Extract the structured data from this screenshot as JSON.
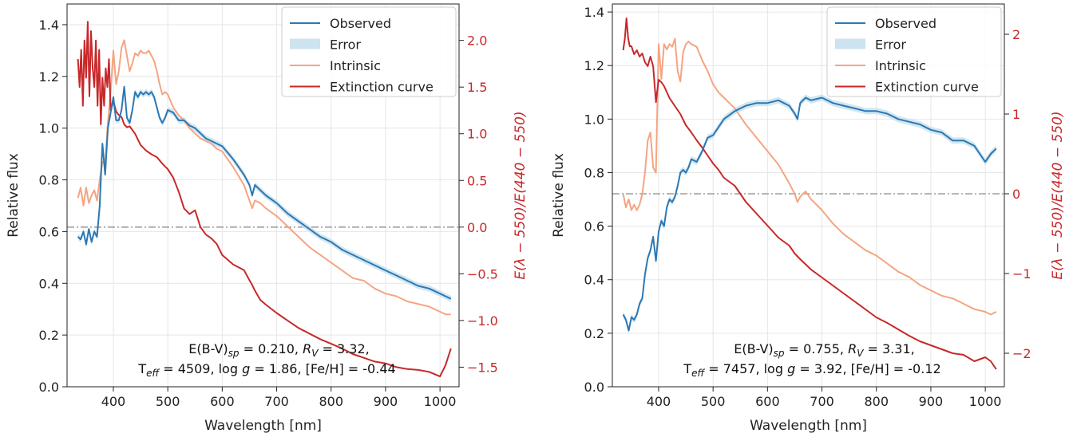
{
  "chart_data": [
    {
      "type": "line",
      "title": "",
      "xlabel": "Wavelength [nm]",
      "ylabel": "Relative flux",
      "ylabel_right": "E(λ − 550)/E(440 − 550)",
      "xlim": [
        315,
        1035
      ],
      "ylim": [
        0.0,
        1.48
      ],
      "ylim_right": [
        -1.71,
        2.39
      ],
      "xticks": [
        400,
        500,
        600,
        700,
        800,
        900,
        1000
      ],
      "yticks": [
        0.0,
        0.2,
        0.4,
        0.6,
        0.8,
        1.0,
        1.2,
        1.4
      ],
      "yticks_right": [
        -1.5,
        -1.0,
        -0.5,
        0.0,
        0.5,
        1.0,
        1.5,
        2.0
      ],
      "grid": true,
      "legend_position": "top-right",
      "legend": [
        "Observed",
        "Error",
        "Intrinsic",
        "Extinction curve"
      ],
      "colors": {
        "observed": "#2b78b4",
        "error": "#cde3ef",
        "intrinsic": "#f4a582",
        "extinction": "#c8282a",
        "zero_line": "#8c8c8c"
      },
      "annotation": {
        "line1": {
          "a": "E(B-V)",
          "sub": "sp",
          "b": " = 0.210, ",
          "c": "R",
          "csub": "V",
          "d": " = 3.32,"
        },
        "line2": {
          "a": "T",
          "sub": "eff",
          "b": " = 4509, log ",
          "c": "g",
          "d": " = 1.86, [Fe/H] = -0.44"
        }
      },
      "zero_line_right": 0,
      "series": [
        {
          "name": "Observed",
          "axis": "left",
          "x": [
            335,
            340,
            345,
            350,
            355,
            360,
            365,
            370,
            375,
            380,
            385,
            390,
            395,
            400,
            405,
            410,
            415,
            420,
            425,
            430,
            435,
            440,
            445,
            450,
            455,
            460,
            465,
            470,
            475,
            480,
            485,
            490,
            495,
            500,
            510,
            520,
            530,
            540,
            550,
            560,
            570,
            580,
            590,
            600,
            620,
            640,
            650,
            655,
            660,
            670,
            680,
            700,
            720,
            740,
            760,
            780,
            800,
            820,
            840,
            860,
            880,
            900,
            920,
            940,
            960,
            980,
            1000,
            1010,
            1020
          ],
          "y": [
            0.58,
            0.57,
            0.6,
            0.55,
            0.61,
            0.56,
            0.6,
            0.58,
            0.7,
            0.94,
            0.82,
            1.0,
            1.06,
            1.12,
            1.03,
            1.03,
            1.07,
            1.16,
            1.04,
            1.02,
            1.07,
            1.14,
            1.12,
            1.14,
            1.13,
            1.14,
            1.13,
            1.14,
            1.12,
            1.08,
            1.04,
            1.02,
            1.04,
            1.07,
            1.06,
            1.03,
            1.03,
            1.01,
            1.0,
            0.98,
            0.96,
            0.95,
            0.94,
            0.93,
            0.88,
            0.82,
            0.78,
            0.74,
            0.78,
            0.76,
            0.74,
            0.71,
            0.67,
            0.64,
            0.61,
            0.58,
            0.56,
            0.53,
            0.51,
            0.49,
            0.47,
            0.45,
            0.43,
            0.41,
            0.39,
            0.38,
            0.36,
            0.35,
            0.34
          ]
        },
        {
          "name": "Intrinsic",
          "axis": "left",
          "x": [
            335,
            340,
            345,
            350,
            355,
            360,
            365,
            370,
            375,
            380,
            385,
            390,
            395,
            400,
            405,
            410,
            415,
            420,
            425,
            430,
            435,
            440,
            445,
            450,
            455,
            460,
            465,
            470,
            475,
            480,
            485,
            490,
            495,
            500,
            510,
            520,
            530,
            540,
            550,
            560,
            570,
            580,
            590,
            600,
            620,
            640,
            650,
            655,
            660,
            670,
            680,
            700,
            720,
            740,
            760,
            780,
            800,
            820,
            840,
            860,
            880,
            900,
            920,
            940,
            960,
            980,
            1000,
            1010,
            1020
          ],
          "y": [
            0.73,
            0.77,
            0.7,
            0.77,
            0.71,
            0.74,
            0.76,
            0.72,
            0.8,
            0.87,
            0.86,
            1.02,
            1.14,
            1.3,
            1.17,
            1.22,
            1.31,
            1.34,
            1.28,
            1.22,
            1.25,
            1.29,
            1.28,
            1.3,
            1.29,
            1.29,
            1.3,
            1.28,
            1.26,
            1.22,
            1.17,
            1.13,
            1.14,
            1.13,
            1.08,
            1.05,
            1.03,
            1.0,
            0.98,
            0.96,
            0.95,
            0.94,
            0.92,
            0.91,
            0.85,
            0.78,
            0.72,
            0.69,
            0.72,
            0.71,
            0.69,
            0.66,
            0.62,
            0.58,
            0.54,
            0.51,
            0.48,
            0.45,
            0.42,
            0.41,
            0.38,
            0.36,
            0.35,
            0.33,
            0.32,
            0.31,
            0.29,
            0.28,
            0.28
          ]
        },
        {
          "name": "Extinction curve",
          "axis": "right",
          "x": [
            335,
            338,
            341,
            344,
            347,
            350,
            353,
            356,
            359,
            362,
            365,
            368,
            371,
            374,
            377,
            380,
            383,
            386,
            389,
            392,
            395,
            400,
            405,
            410,
            415,
            420,
            425,
            430,
            440,
            450,
            460,
            470,
            480,
            490,
            500,
            510,
            520,
            530,
            540,
            550,
            560,
            570,
            580,
            590,
            600,
            620,
            640,
            650,
            655,
            660,
            670,
            680,
            700,
            720,
            740,
            760,
            780,
            800,
            820,
            840,
            860,
            880,
            900,
            920,
            940,
            960,
            980,
            1000,
            1010,
            1020
          ],
          "y": [
            1.8,
            1.5,
            1.9,
            1.3,
            2.0,
            1.6,
            2.2,
            1.4,
            2.1,
            1.7,
            1.5,
            2.0,
            1.3,
            1.9,
            1.1,
            1.6,
            1.3,
            1.7,
            1.5,
            1.8,
            1.25,
            1.35,
            1.24,
            1.2,
            1.18,
            1.1,
            1.07,
            1.08,
            1.0,
            0.88,
            0.82,
            0.78,
            0.75,
            0.68,
            0.62,
            0.53,
            0.38,
            0.2,
            0.14,
            0.18,
            0.0,
            -0.08,
            -0.12,
            -0.18,
            -0.3,
            -0.4,
            -0.46,
            -0.57,
            -0.62,
            -0.68,
            -0.78,
            -0.83,
            -0.92,
            -1.0,
            -1.08,
            -1.14,
            -1.2,
            -1.25,
            -1.3,
            -1.36,
            -1.4,
            -1.44,
            -1.46,
            -1.5,
            -1.52,
            -1.53,
            -1.55,
            -1.6,
            -1.48,
            -1.3
          ]
        }
      ]
    },
    {
      "type": "line",
      "title": "",
      "xlabel": "Wavelength [nm]",
      "ylabel": "Relative flux",
      "ylabel_right": "E(λ − 550)/E(440 − 550)",
      "xlim": [
        315,
        1035
      ],
      "ylim": [
        0.0,
        1.43
      ],
      "ylim_right": [
        -2.42,
        2.38
      ],
      "xticks": [
        400,
        500,
        600,
        700,
        800,
        900,
        1000
      ],
      "yticks": [
        0.0,
        0.2,
        0.4,
        0.6,
        0.8,
        1.0,
        1.2,
        1.4
      ],
      "yticks_right": [
        -2,
        -1,
        0,
        1,
        2
      ],
      "grid": true,
      "legend_position": "top-right",
      "legend": [
        "Observed",
        "Error",
        "Intrinsic",
        "Extinction curve"
      ],
      "colors": {
        "observed": "#2b78b4",
        "error": "#cde3ef",
        "intrinsic": "#f4a582",
        "extinction": "#c8282a",
        "zero_line": "#8c8c8c"
      },
      "annotation": {
        "line1": {
          "a": "E(B-V)",
          "sub": "sp",
          "b": " = 0.755, ",
          "c": "R",
          "csub": "V",
          "d": " = 3.31,"
        },
        "line2": {
          "a": "T",
          "sub": "eff",
          "b": " = 7457, log ",
          "c": "g",
          "d": " = 3.92, [Fe/H] = -0.12"
        }
      },
      "zero_line_right": 0,
      "series": [
        {
          "name": "Observed",
          "axis": "left",
          "x": [
            335,
            340,
            345,
            350,
            355,
            360,
            365,
            370,
            375,
            380,
            385,
            390,
            395,
            400,
            405,
            410,
            415,
            420,
            425,
            430,
            435,
            440,
            445,
            450,
            455,
            460,
            470,
            480,
            490,
            500,
            510,
            520,
            540,
            560,
            580,
            600,
            620,
            640,
            650,
            655,
            660,
            670,
            680,
            700,
            720,
            740,
            760,
            780,
            800,
            820,
            840,
            860,
            880,
            900,
            920,
            940,
            960,
            980,
            1000,
            1010,
            1020
          ],
          "y": [
            0.27,
            0.25,
            0.21,
            0.26,
            0.25,
            0.27,
            0.31,
            0.33,
            0.42,
            0.48,
            0.51,
            0.56,
            0.47,
            0.58,
            0.62,
            0.6,
            0.67,
            0.7,
            0.69,
            0.71,
            0.75,
            0.8,
            0.81,
            0.8,
            0.82,
            0.85,
            0.84,
            0.88,
            0.93,
            0.94,
            0.97,
            1.0,
            1.03,
            1.05,
            1.06,
            1.06,
            1.07,
            1.05,
            1.02,
            1.0,
            1.06,
            1.08,
            1.07,
            1.08,
            1.06,
            1.05,
            1.04,
            1.03,
            1.03,
            1.02,
            1.0,
            0.99,
            0.98,
            0.96,
            0.95,
            0.92,
            0.92,
            0.9,
            0.84,
            0.87,
            0.89
          ]
        },
        {
          "name": "Intrinsic",
          "axis": "left",
          "x": [
            335,
            340,
            345,
            350,
            355,
            360,
            365,
            370,
            375,
            380,
            385,
            390,
            395,
            400,
            405,
            410,
            415,
            420,
            425,
            430,
            435,
            440,
            445,
            450,
            455,
            460,
            470,
            480,
            490,
            500,
            510,
            520,
            540,
            560,
            580,
            600,
            620,
            640,
            650,
            655,
            660,
            670,
            680,
            700,
            720,
            740,
            760,
            780,
            800,
            820,
            840,
            860,
            880,
            900,
            920,
            940,
            960,
            980,
            1000,
            1010,
            1020
          ],
          "y": [
            0.72,
            0.67,
            0.7,
            0.66,
            0.68,
            0.66,
            0.68,
            0.72,
            0.8,
            0.92,
            0.95,
            0.82,
            0.8,
            1.28,
            1.15,
            1.28,
            1.26,
            1.28,
            1.27,
            1.3,
            1.18,
            1.14,
            1.25,
            1.28,
            1.29,
            1.28,
            1.27,
            1.22,
            1.18,
            1.13,
            1.1,
            1.08,
            1.04,
            0.98,
            0.93,
            0.88,
            0.83,
            0.76,
            0.72,
            0.69,
            0.71,
            0.73,
            0.7,
            0.66,
            0.61,
            0.57,
            0.54,
            0.51,
            0.49,
            0.46,
            0.43,
            0.41,
            0.38,
            0.36,
            0.34,
            0.33,
            0.31,
            0.29,
            0.28,
            0.27,
            0.28
          ]
        },
        {
          "name": "Extinction curve",
          "axis": "right",
          "x": [
            335,
            338,
            341,
            344,
            347,
            350,
            355,
            360,
            365,
            370,
            375,
            380,
            385,
            390,
            395,
            400,
            405,
            410,
            420,
            430,
            440,
            450,
            460,
            470,
            480,
            490,
            500,
            510,
            520,
            540,
            560,
            580,
            600,
            620,
            640,
            650,
            660,
            680,
            700,
            720,
            740,
            760,
            780,
            800,
            820,
            840,
            860,
            880,
            900,
            920,
            940,
            960,
            980,
            1000,
            1010,
            1020
          ],
          "y": [
            1.8,
            1.95,
            2.2,
            1.95,
            1.85,
            1.85,
            1.75,
            1.8,
            1.72,
            1.76,
            1.65,
            1.6,
            1.72,
            1.6,
            1.15,
            1.43,
            1.4,
            1.35,
            1.2,
            1.1,
            1.0,
            0.86,
            0.77,
            0.67,
            0.58,
            0.48,
            0.38,
            0.3,
            0.2,
            0.1,
            -0.1,
            -0.25,
            -0.4,
            -0.55,
            -0.65,
            -0.75,
            -0.82,
            -0.95,
            -1.05,
            -1.15,
            -1.25,
            -1.35,
            -1.45,
            -1.55,
            -1.62,
            -1.7,
            -1.78,
            -1.85,
            -1.9,
            -1.95,
            -2.0,
            -2.02,
            -2.1,
            -2.05,
            -2.1,
            -2.2
          ]
        }
      ]
    }
  ]
}
